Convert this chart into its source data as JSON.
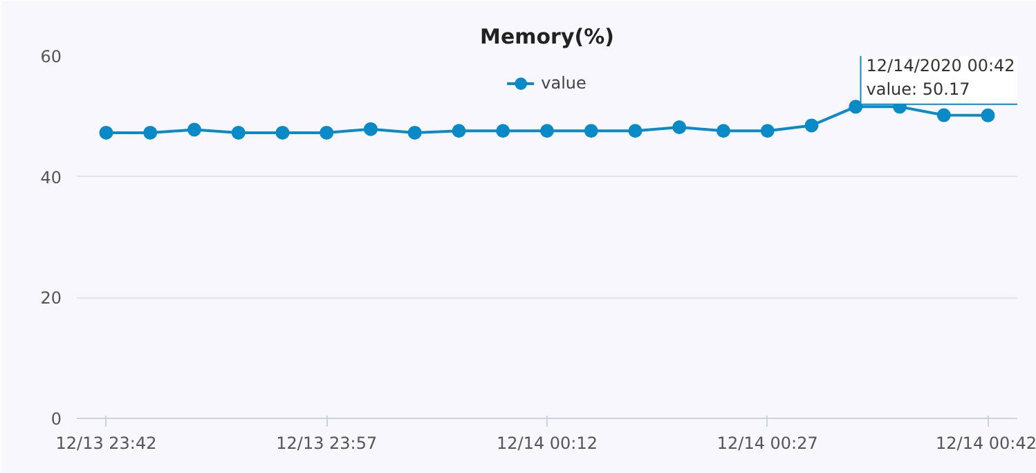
{
  "chart_data": {
    "type": "line",
    "title": "Memory(%)",
    "x": [
      "2020-12-13T23:42",
      "2020-12-13T23:45",
      "2020-12-13T23:48",
      "2020-12-13T23:51",
      "2020-12-13T23:54",
      "2020-12-13T23:57",
      "2020-12-14T00:00",
      "2020-12-14T00:03",
      "2020-12-14T00:06",
      "2020-12-14T00:09",
      "2020-12-14T00:12",
      "2020-12-14T00:15",
      "2020-12-14T00:18",
      "2020-12-14T00:21",
      "2020-12-14T00:24",
      "2020-12-14T00:27",
      "2020-12-14T00:30",
      "2020-12-14T00:33",
      "2020-12-14T00:36",
      "2020-12-14T00:39",
      "2020-12-14T00:42"
    ],
    "series": [
      {
        "name": "value",
        "color": "#0a8ac6",
        "values": [
          47.3,
          47.3,
          47.8,
          47.3,
          47.3,
          47.3,
          47.9,
          47.3,
          47.6,
          47.6,
          47.6,
          47.6,
          47.6,
          48.2,
          47.6,
          47.6,
          48.5,
          51.6,
          51.6,
          50.2,
          50.17
        ]
      }
    ],
    "xlim": [
      "2020-12-13T23:40",
      "2020-12-14T00:44"
    ],
    "xticks": [
      {
        "value": "2020-12-13T23:42",
        "label": "12/13 23:42"
      },
      {
        "value": "2020-12-13T23:57",
        "label": "12/13 23:57"
      },
      {
        "value": "2020-12-14T00:12",
        "label": "12/14 00:12"
      },
      {
        "value": "2020-12-14T00:27",
        "label": "12/14 00:27"
      },
      {
        "value": "2020-12-14T00:42",
        "label": "12/14 00:42"
      }
    ],
    "ylim": [
      0,
      60
    ],
    "yticks": [
      0,
      20,
      40,
      60
    ],
    "grid": "y",
    "legend": "top",
    "marker": "circle",
    "line_style": "solid",
    "annotations": [
      {
        "text": "12/14/2020 00:42\nvalue: 50.17",
        "x": "2020-12-14T00:42",
        "y": 50.17
      }
    ]
  }
}
